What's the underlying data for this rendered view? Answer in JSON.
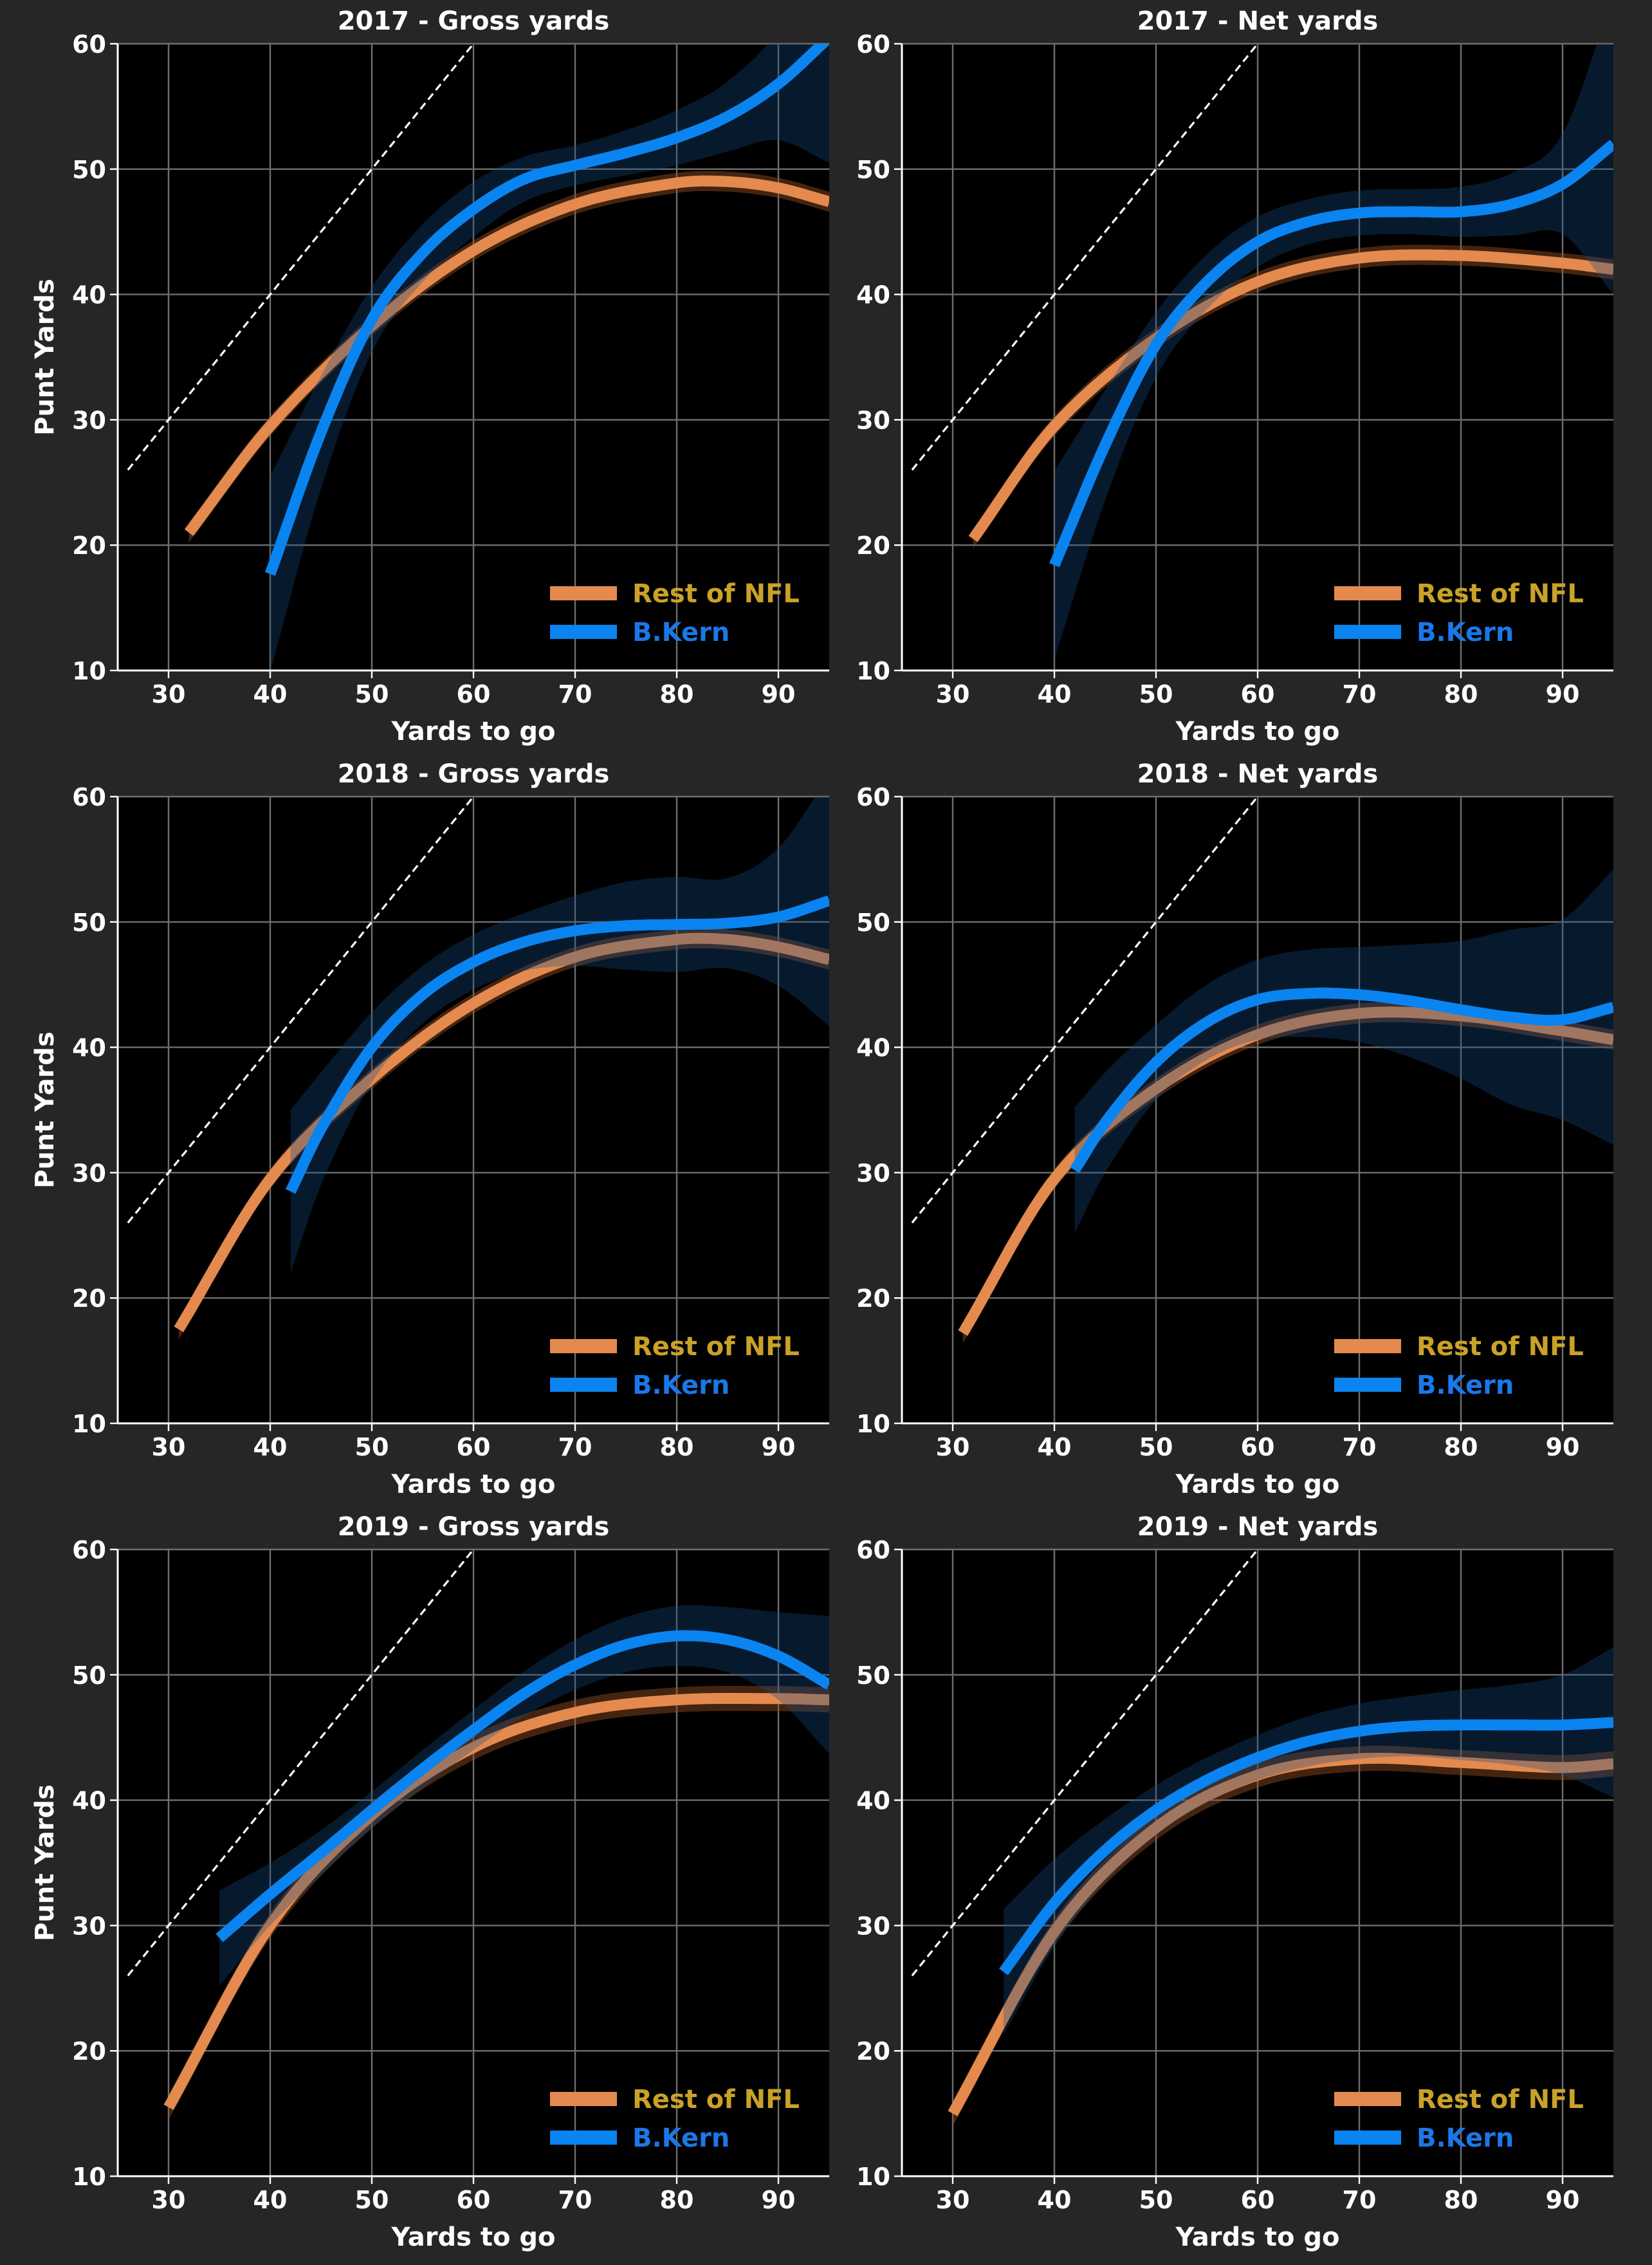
{
  "figure": {
    "background": "#262626",
    "plot_background": "#000000",
    "colors": {
      "rest": "#E48A4E",
      "kern": "#0A84F0",
      "rest_legend_text": "#C9A227",
      "kern_legend_text": "#1A78E8",
      "text": "#FFFFFF",
      "grid": "#6E6E6E"
    }
  },
  "chart_data": [
    {
      "type": "line",
      "title": "2017 - Gross yards",
      "xlabel": "Yards to go",
      "ylabel": "Punt Yards",
      "xlim": [
        25,
        95
      ],
      "ylim": [
        10,
        60
      ],
      "xticks": [
        30,
        40,
        50,
        60,
        70,
        80,
        90
      ],
      "yticks": [
        10,
        20,
        30,
        40,
        50,
        60
      ],
      "reference_line": {
        "x": [
          26,
          60
        ],
        "y": [
          26,
          60
        ],
        "style": "dashed"
      },
      "legend": [
        "Rest of NFL",
        "B.Kern"
      ],
      "legend_position": "lower-right",
      "series": [
        {
          "name": "Rest of NFL",
          "x": [
            32,
            40,
            50,
            60,
            70,
            80,
            85,
            90,
            95
          ],
          "y": [
            21,
            29.5,
            37.5,
            43.5,
            47.2,
            48.9,
            49.0,
            48.5,
            47.4
          ],
          "band": 0.8
        },
        {
          "name": "B.Kern",
          "x": [
            40,
            45,
            50,
            55,
            60,
            65,
            70,
            75,
            80,
            85,
            90,
            95
          ],
          "y": [
            17.7,
            29,
            38,
            43.3,
            46.8,
            49.2,
            50.3,
            51.3,
            52.5,
            54.2,
            56.8,
            60.5
          ],
          "band": [
            7.8,
            4.5,
            2.6,
            2.3,
            2.2,
            1.8,
            1.6,
            1.8,
            2.2,
            2.8,
            4.5,
            10
          ]
        }
      ]
    },
    {
      "type": "line",
      "title": "2017 - Net yards",
      "xlabel": "Yards to go",
      "ylabel": "",
      "xlim": [
        25,
        95
      ],
      "ylim": [
        10,
        60
      ],
      "xticks": [
        30,
        40,
        50,
        60,
        70,
        80,
        90
      ],
      "yticks": [
        10,
        20,
        30,
        40,
        50,
        60
      ],
      "reference_line": {
        "x": [
          26,
          60
        ],
        "y": [
          26,
          60
        ],
        "style": "dashed"
      },
      "legend": [
        "Rest of NFL",
        "B.Kern"
      ],
      "legend_position": "lower-right",
      "series": [
        {
          "name": "Rest of NFL",
          "x": [
            32,
            40,
            50,
            60,
            70,
            80,
            90,
            95
          ],
          "y": [
            20.5,
            29.5,
            36.5,
            41.0,
            42.9,
            43.1,
            42.5,
            42.0
          ],
          "band": 0.8
        },
        {
          "name": "B.Kern",
          "x": [
            40,
            45,
            50,
            55,
            60,
            65,
            70,
            75,
            80,
            85,
            90,
            95
          ],
          "y": [
            18.4,
            28,
            36,
            41,
            44.2,
            45.8,
            46.5,
            46.6,
            46.6,
            47.2,
            48.8,
            52
          ],
          "band": [
            7.5,
            4.4,
            2.6,
            2.2,
            2.0,
            1.8,
            1.8,
            1.8,
            2.0,
            2.5,
            4.0,
            12
          ]
        }
      ]
    },
    {
      "type": "line",
      "title": "2018 - Gross yards",
      "xlabel": "Yards to go",
      "ylabel": "Punt Yards",
      "xlim": [
        25,
        95
      ],
      "ylim": [
        10,
        60
      ],
      "xticks": [
        30,
        40,
        50,
        60,
        70,
        80,
        90
      ],
      "yticks": [
        10,
        20,
        30,
        40,
        50,
        60
      ],
      "reference_line": {
        "x": [
          26,
          60
        ],
        "y": [
          26,
          60
        ],
        "style": "dashed"
      },
      "legend": [
        "Rest of NFL",
        "B.Kern"
      ],
      "legend_position": "lower-right",
      "series": [
        {
          "name": "Rest of NFL",
          "x": [
            31,
            40,
            50,
            60,
            70,
            80,
            85,
            90,
            95
          ],
          "y": [
            17.5,
            29.5,
            37.5,
            43.5,
            47.2,
            48.6,
            48.6,
            48.0,
            47.0
          ],
          "band": 0.8
        },
        {
          "name": "B.Kern",
          "x": [
            42,
            45,
            50,
            55,
            60,
            65,
            70,
            75,
            80,
            85,
            90,
            95
          ],
          "y": [
            28.5,
            33.5,
            40,
            44.2,
            46.8,
            48.4,
            49.3,
            49.7,
            49.8,
            49.9,
            50.4,
            51.7
          ],
          "band": [
            6.5,
            4.5,
            2.8,
            2.3,
            2.2,
            2.3,
            2.8,
            3.5,
            3.8,
            3.6,
            5.5,
            10
          ]
        }
      ]
    },
    {
      "type": "line",
      "title": "2018 - Net yards",
      "xlabel": "Yards to go",
      "ylabel": "",
      "xlim": [
        25,
        95
      ],
      "ylim": [
        10,
        60
      ],
      "xticks": [
        30,
        40,
        50,
        60,
        70,
        80,
        90
      ],
      "yticks": [
        10,
        20,
        30,
        40,
        50,
        60
      ],
      "reference_line": {
        "x": [
          26,
          60
        ],
        "y": [
          26,
          60
        ],
        "style": "dashed"
      },
      "legend": [
        "Rest of NFL",
        "B.Kern"
      ],
      "legend_position": "lower-right",
      "series": [
        {
          "name": "Rest of NFL",
          "x": [
            31,
            40,
            50,
            60,
            70,
            80,
            90,
            95
          ],
          "y": [
            17.2,
            29.5,
            36.7,
            41.0,
            42.7,
            42.5,
            41.3,
            40.6
          ],
          "band": 0.8
        },
        {
          "name": "B.Kern",
          "x": [
            42,
            45,
            50,
            55,
            60,
            65,
            70,
            75,
            80,
            85,
            90,
            95
          ],
          "y": [
            30.2,
            34,
            38.8,
            42.0,
            43.8,
            44.3,
            44.2,
            43.7,
            43.0,
            42.4,
            42.2,
            43.2
          ],
          "band": [
            5,
            4,
            3,
            3,
            3.2,
            3.5,
            3.8,
            4.5,
            5.5,
            7,
            8,
            11
          ]
        }
      ]
    },
    {
      "type": "line",
      "title": "2019 - Gross yards",
      "xlabel": "Yards to go",
      "ylabel": "Punt Yards",
      "xlim": [
        25,
        95
      ],
      "ylim": [
        10,
        60
      ],
      "xticks": [
        30,
        40,
        50,
        60,
        70,
        80,
        90
      ],
      "yticks": [
        10,
        20,
        30,
        40,
        50,
        60
      ],
      "reference_line": {
        "x": [
          26,
          60
        ],
        "y": [
          26,
          60
        ],
        "style": "dashed"
      },
      "legend": [
        "Rest of NFL",
        "B.Kern"
      ],
      "legend_position": "lower-right",
      "series": [
        {
          "name": "Rest of NFL",
          "x": [
            30,
            40,
            50,
            60,
            70,
            80,
            90,
            95
          ],
          "y": [
            15.5,
            30,
            38.8,
            44.2,
            47.0,
            48.0,
            48.1,
            48.0
          ],
          "band": 1.0
        },
        {
          "name": "B.Kern",
          "x": [
            35,
            40,
            45,
            50,
            55,
            60,
            65,
            70,
            75,
            80,
            85,
            90,
            95
          ],
          "y": [
            29,
            32.5,
            35.8,
            39.2,
            42.5,
            45.6,
            48.5,
            50.8,
            52.4,
            53.1,
            52.8,
            51.5,
            49.2
          ],
          "band": [
            3.8,
            2.5,
            1.8,
            1.5,
            1.5,
            1.6,
            1.8,
            2.0,
            2.2,
            2.4,
            2.6,
            3.5,
            5.5
          ]
        }
      ]
    },
    {
      "type": "line",
      "title": "2019 - Net yards",
      "xlabel": "Yards to go",
      "ylabel": "",
      "xlim": [
        25,
        95
      ],
      "ylim": [
        10,
        60
      ],
      "xticks": [
        30,
        40,
        50,
        60,
        70,
        80,
        90
      ],
      "yticks": [
        10,
        20,
        30,
        40,
        50,
        60
      ],
      "reference_line": {
        "x": [
          26,
          60
        ],
        "y": [
          26,
          60
        ],
        "style": "dashed"
      },
      "legend": [
        "Rest of NFL",
        "B.Kern"
      ],
      "legend_position": "lower-right",
      "series": [
        {
          "name": "Rest of NFL",
          "x": [
            30,
            40,
            50,
            60,
            70,
            80,
            90,
            95
          ],
          "y": [
            15,
            29.5,
            37.8,
            42,
            43.3,
            43.0,
            42.6,
            42.9
          ],
          "band": 1.0
        },
        {
          "name": "B.Kern",
          "x": [
            35,
            40,
            45,
            50,
            55,
            60,
            65,
            70,
            75,
            80,
            85,
            90,
            95
          ],
          "y": [
            26.3,
            31.8,
            36,
            39.2,
            41.6,
            43.4,
            44.7,
            45.5,
            45.9,
            46.0,
            46.0,
            46.0,
            46.2
          ],
          "band": [
            5,
            3.5,
            2.5,
            2.0,
            1.8,
            1.8,
            2.0,
            2.2,
            2.4,
            2.8,
            3.2,
            4.0,
            6.0
          ]
        }
      ]
    }
  ]
}
